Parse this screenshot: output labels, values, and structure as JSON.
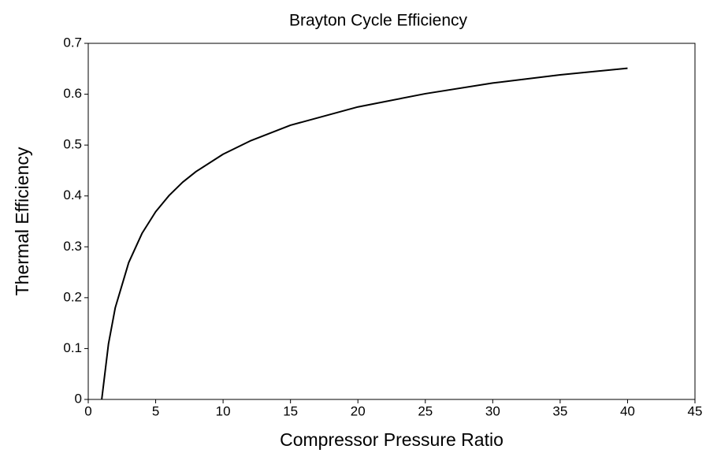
{
  "chart_data": {
    "type": "line",
    "title": "Brayton Cycle Efficiency",
    "x_label": "Compressor Pressure Ratio",
    "y_label": "Thermal Efficiency",
    "x": [
      1,
      1.5,
      2,
      3,
      4,
      5,
      6,
      7,
      8,
      10,
      12,
      15,
      20,
      25,
      30,
      35,
      40
    ],
    "series": [
      {
        "name": "Thermal Efficiency",
        "color": "#000000",
        "values": [
          0,
          0.109,
          0.18,
          0.269,
          0.327,
          0.369,
          0.401,
          0.427,
          0.448,
          0.482,
          0.508,
          0.539,
          0.575,
          0.601,
          0.622,
          0.638,
          0.651
        ]
      }
    ],
    "xlim": [
      0,
      45
    ],
    "xticks": [
      0,
      5,
      10,
      15,
      20,
      25,
      30,
      35,
      40,
      45
    ],
    "ylim": [
      0,
      0.7
    ],
    "yticks": [
      {
        "value": 0,
        "label": "0"
      },
      0.1,
      0.2,
      0.3,
      0.4,
      0.5,
      0.6,
      0.7
    ],
    "grid": false
  }
}
